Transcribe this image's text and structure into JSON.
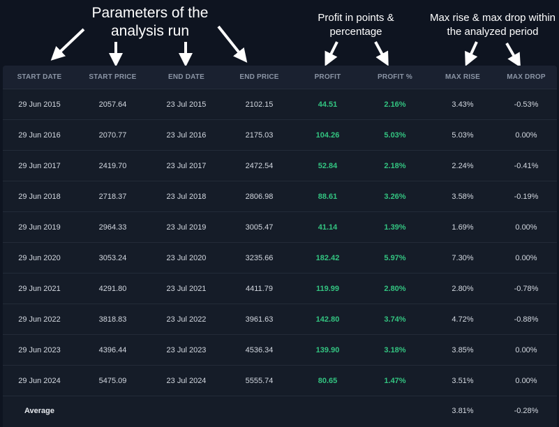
{
  "annotations": {
    "main": "Parameters of the analysis run",
    "profit": "Profit in points & percentage",
    "rise_drop": "Max rise & max drop within the analyzed period"
  },
  "table": {
    "headers": [
      "START DATE",
      "START PRICE",
      "END DATE",
      "END PRICE",
      "PROFIT",
      "PROFIT %",
      "MAX RISE",
      "MAX DROP"
    ],
    "rows": [
      [
        "29 Jun 2015",
        "2057.64",
        "23 Jul 2015",
        "2102.15",
        "44.51",
        "2.16%",
        "3.43%",
        "-0.53%"
      ],
      [
        "29 Jun 2016",
        "2070.77",
        "23 Jul 2016",
        "2175.03",
        "104.26",
        "5.03%",
        "5.03%",
        "0.00%"
      ],
      [
        "29 Jun 2017",
        "2419.70",
        "23 Jul 2017",
        "2472.54",
        "52.84",
        "2.18%",
        "2.24%",
        "-0.41%"
      ],
      [
        "29 Jun 2018",
        "2718.37",
        "23 Jul 2018",
        "2806.98",
        "88.61",
        "3.26%",
        "3.58%",
        "-0.19%"
      ],
      [
        "29 Jun 2019",
        "2964.33",
        "23 Jul 2019",
        "3005.47",
        "41.14",
        "1.39%",
        "1.69%",
        "0.00%"
      ],
      [
        "29 Jun 2020",
        "3053.24",
        "23 Jul 2020",
        "3235.66",
        "182.42",
        "5.97%",
        "7.30%",
        "0.00%"
      ],
      [
        "29 Jun 2021",
        "4291.80",
        "23 Jul 2021",
        "4411.79",
        "119.99",
        "2.80%",
        "2.80%",
        "-0.78%"
      ],
      [
        "29 Jun 2022",
        "3818.83",
        "23 Jul 2022",
        "3961.63",
        "142.80",
        "3.74%",
        "4.72%",
        "-0.88%"
      ],
      [
        "29 Jun 2023",
        "4396.44",
        "23 Jul 2023",
        "4536.34",
        "139.90",
        "3.18%",
        "3.85%",
        "0.00%"
      ],
      [
        "29 Jun 2024",
        "5475.09",
        "23 Jul 2024",
        "5555.74",
        "80.65",
        "1.47%",
        "3.51%",
        "0.00%"
      ]
    ],
    "average": {
      "label": "Average",
      "max_rise": "3.81%",
      "max_drop": "-0.28%"
    }
  },
  "colors": {
    "background": "#0e1420",
    "table_bg": "#151c28",
    "profit_green": "#33c481",
    "header_text": "#8b95a5"
  }
}
